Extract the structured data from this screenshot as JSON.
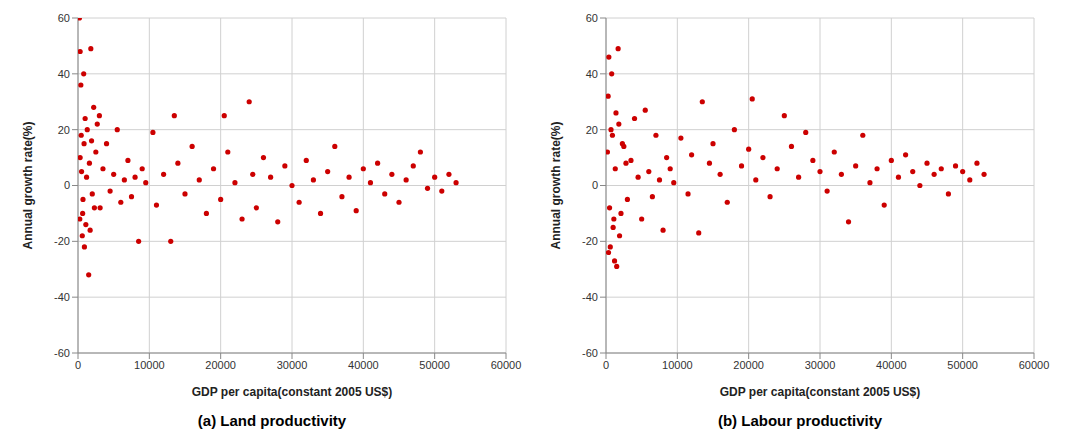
{
  "chart_data": [
    {
      "type": "scatter",
      "title": "(a) Land productivity",
      "x_label": "GDP per capita(constant 2005 US$)",
      "y_label": "Annual growth rate(%)",
      "xlim": [
        0,
        60000
      ],
      "xticks": [
        0,
        10000,
        20000,
        30000,
        40000,
        50000,
        60000
      ],
      "ylim": [
        -60,
        60
      ],
      "yticks": [
        -60,
        -40,
        -20,
        0,
        20,
        40,
        60
      ],
      "grid": true,
      "color": "#cc0000",
      "x": [
        200,
        300,
        800,
        1800,
        400,
        1000,
        1500,
        900,
        600,
        2200,
        3000,
        300,
        500,
        700,
        1200,
        1600,
        2000,
        2500,
        3100,
        3500,
        4000,
        4500,
        5000,
        5500,
        6000,
        6500,
        7000,
        7500,
        8000,
        8500,
        9000,
        9500,
        10500,
        11000,
        12000,
        13000,
        13500,
        14000,
        15000,
        16000,
        17000,
        18000,
        19000,
        20000,
        20500,
        21000,
        22000,
        23000,
        24000,
        24500,
        25000,
        26000,
        27000,
        28000,
        29000,
        30000,
        31000,
        32000,
        33000,
        34000,
        35000,
        36000,
        37000,
        38000,
        39000,
        40000,
        41000,
        42000,
        43000,
        44000,
        45000,
        46000,
        47000,
        48000,
        49000,
        50000,
        51000,
        52000,
        53000,
        250,
        450,
        650,
        850,
        1100,
        1300,
        1700,
        1900,
        2300,
        2700
      ],
      "values": [
        60,
        48,
        40,
        49,
        36,
        24,
        -32,
        -22,
        -18,
        28,
        25,
        10,
        5,
        -5,
        3,
        8,
        -3,
        12,
        -8,
        6,
        15,
        -2,
        4,
        20,
        -6,
        2,
        9,
        -4,
        3,
        -20,
        6,
        1,
        19,
        -7,
        4,
        -20,
        25,
        8,
        -3,
        14,
        2,
        -10,
        6,
        -5,
        25,
        12,
        1,
        -12,
        30,
        4,
        -8,
        10,
        3,
        -13,
        7,
        0,
        -6,
        9,
        2,
        -10,
        5,
        14,
        -4,
        3,
        -9,
        6,
        1,
        8,
        -3,
        4,
        -6,
        2,
        7,
        12,
        -1,
        3,
        -2,
        4,
        1,
        -12,
        18,
        -10,
        15,
        -14,
        20,
        -16,
        16,
        -8,
        22
      ]
    },
    {
      "type": "scatter",
      "title": "(b) Labour productivity",
      "x_label": "GDP per capita(constant 2005 US$)",
      "y_label": "Annual growth rate(%)",
      "xlim": [
        0,
        60000
      ],
      "xticks": [
        0,
        10000,
        20000,
        30000,
        40000,
        50000,
        60000
      ],
      "ylim": [
        -60,
        60
      ],
      "yticks": [
        -60,
        -40,
        -20,
        0,
        20,
        40,
        60
      ],
      "grid": true,
      "color": "#cc0000",
      "x": [
        400,
        800,
        1700,
        300,
        1500,
        1200,
        600,
        13500,
        20500,
        25000,
        28000,
        200,
        500,
        700,
        1000,
        1300,
        1800,
        2100,
        2500,
        3000,
        3500,
        4000,
        4500,
        5000,
        5500,
        6000,
        6500,
        7000,
        7500,
        8000,
        8500,
        9000,
        9500,
        10500,
        11500,
        12000,
        13000,
        14500,
        15000,
        16000,
        17000,
        18000,
        19000,
        20000,
        21000,
        22000,
        23000,
        24000,
        26000,
        27000,
        29000,
        30000,
        31000,
        32000,
        33000,
        34000,
        35000,
        36000,
        37000,
        38000,
        39000,
        40000,
        41000,
        42000,
        43000,
        44000,
        45000,
        46000,
        47000,
        48000,
        49000,
        50000,
        51000,
        52000,
        53000,
        350,
        900,
        1100,
        1400,
        1900,
        2300,
        2800
      ],
      "values": [
        46,
        40,
        49,
        32,
        -29,
        -27,
        -22,
        30,
        31,
        25,
        19,
        12,
        -8,
        20,
        -15,
        6,
        22,
        -10,
        14,
        -5,
        9,
        24,
        3,
        -12,
        27,
        5,
        -4,
        18,
        2,
        -16,
        10,
        6,
        1,
        17,
        -3,
        11,
        -17,
        8,
        15,
        4,
        -6,
        20,
        7,
        13,
        2,
        10,
        -4,
        6,
        14,
        3,
        9,
        5,
        -2,
        12,
        4,
        -13,
        7,
        18,
        1,
        6,
        -7,
        9,
        3,
        11,
        5,
        0,
        8,
        4,
        6,
        -3,
        7,
        5,
        2,
        8,
        4,
        -24,
        18,
        -12,
        26,
        -18,
        15,
        8
      ]
    }
  ]
}
